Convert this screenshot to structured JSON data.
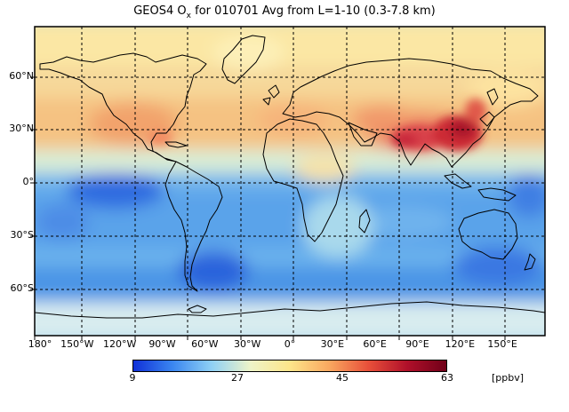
{
  "title": {
    "prefix": "GEOS4 O",
    "subscript": "x",
    "suffix": " for 010701 Avg from L=1-10 (0.3-7.8 km)"
  },
  "map": {
    "projection": "equirectangular",
    "lon_range": [
      -180,
      180
    ],
    "lat_range": [
      -90,
      90
    ],
    "grid": "dashed, 30-degree spacing",
    "lat_labels": [
      "60°N",
      "30°N",
      "0°",
      "30°S",
      "60°S"
    ],
    "lon_labels": [
      "180°",
      "150°W",
      "120°W",
      "90°W",
      "60°W",
      "30°W",
      "0°",
      "30°E",
      "60°E",
      "90°E",
      "120°E",
      "150°E"
    ]
  },
  "colorbar": {
    "ticks": [
      "9",
      "27",
      "45",
      "63"
    ],
    "units": "[ppbv]",
    "range": [
      9,
      63
    ],
    "colors": [
      "#1030d8",
      "#3a86f0",
      "#8fd0f5",
      "#eef4c8",
      "#fde58a",
      "#f9a860",
      "#e8503a",
      "#b0102a",
      "#700018"
    ]
  }
}
